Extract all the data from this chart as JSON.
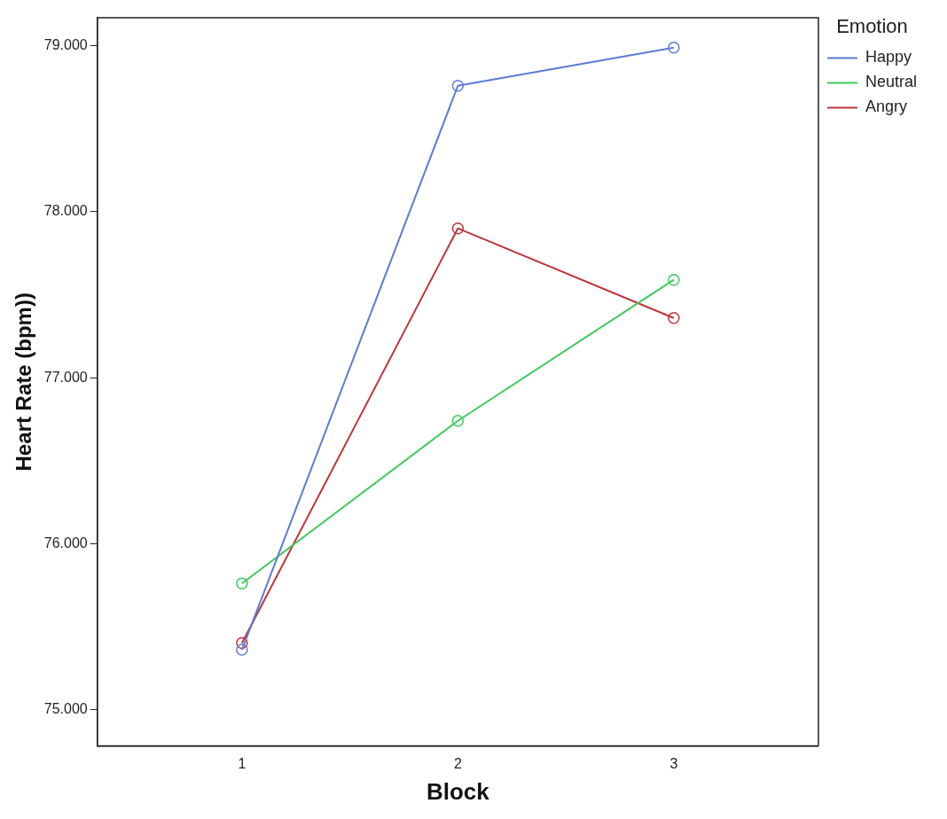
{
  "chart_data": {
    "type": "line",
    "xlabel": "Block",
    "ylabel": "Heart Rate (bpm))",
    "legend_title": "Emotion",
    "legend": "top right",
    "grid": false,
    "marker": "circle",
    "x": [
      1,
      2,
      3
    ],
    "xlim": [
      0.33,
      3.67
    ],
    "xticks": [
      1,
      2,
      3
    ],
    "ylim": [
      74.78,
      79.17
    ],
    "yticks": [
      {
        "value": 75,
        "label": "75.000"
      },
      {
        "value": 76,
        "label": "76.000"
      },
      {
        "value": 77,
        "label": "77.000"
      },
      {
        "value": 78,
        "label": "78.000"
      },
      {
        "value": 79,
        "label": "79.000"
      }
    ],
    "series": [
      {
        "name": "Happy",
        "color": "#5b7bd5",
        "values": [
          75.36,
          78.76,
          78.99
        ]
      },
      {
        "name": "Neutral",
        "color": "#3ec95a",
        "values": [
          75.76,
          76.74,
          77.59
        ]
      },
      {
        "name": "Angry",
        "color": "#c0353a",
        "values": [
          75.4,
          77.9,
          77.36
        ]
      }
    ]
  }
}
